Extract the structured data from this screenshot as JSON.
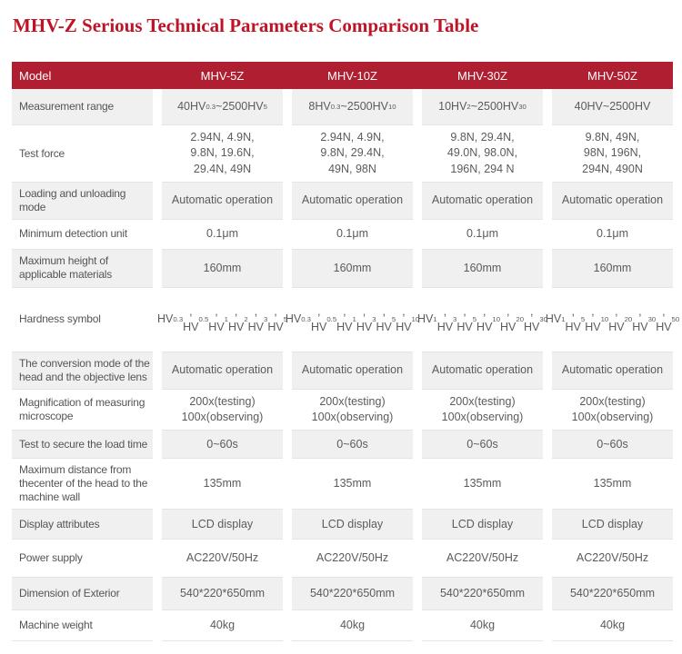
{
  "page": {
    "title": "MHV-Z Serious Technical Parameters Comparison Table"
  },
  "colors": {
    "title_red": "#bf1425",
    "header_bg": "#b01e31",
    "row_gray": "#f0f0f0"
  },
  "table": {
    "header": [
      "Model",
      "MHV-5Z",
      "MHV-10Z",
      "MHV-30Z",
      "MHV-50Z"
    ],
    "rows": [
      {
        "label": "Measurement range",
        "cells": [
          "40HV{0.3}~2500HV{5}",
          "8HV{0.3}~2500HV{10}",
          "10HV{2}~2500HV{30}",
          "40HV~2500HV"
        ]
      },
      {
        "label": "Test force",
        "cells": [
          [
            "2.94N、4.9N、",
            "9.8N、19.6N、",
            "29.4N、49N"
          ],
          [
            "2.94N、4.9N、",
            "9.8N、29.4N、",
            "49N、98N"
          ],
          [
            "9.8N、29.4N、",
            "49.0N、98.0N、",
            "196N、294 N"
          ],
          [
            "9.8N、49N、",
            "98N、196N、",
            "294N、490N"
          ]
        ]
      },
      {
        "label": "Loading and unloading mode",
        "cells": [
          "Automatic operation",
          "Automatic operation",
          "Automatic operation",
          "Automatic operation"
        ]
      },
      {
        "label": "Minimum detection unit",
        "cells": [
          "0.1μm",
          "0.1μm",
          "0.1μm",
          "0.1μm"
        ]
      },
      {
        "label": "Maximum height of applicable materials",
        "cells": [
          "160mm",
          "160mm",
          "160mm",
          "160mm"
        ]
      },
      {
        "label": "Hardness symbol",
        "cells": [
          [
            "HV{0.3}、HV{0.5}、",
            "HV{1}、HV{2}、",
            "HV{3}、HV{5}"
          ],
          [
            "HV{0.3}、HV{0.5}、",
            "HV{1}、HV{3}、",
            "HV{5}、HV{10}"
          ],
          [
            "HV{1}、HV{3}、",
            "HV{5}、HV{10}、",
            "HV{20}、HV{30}"
          ],
          [
            "HV{1}、HV{5}、",
            "HV{10}、HV{20}、",
            "HV{30}、HV{50}"
          ]
        ]
      },
      {
        "label": "The conversion mode of the head and the objective lens",
        "cells": [
          "Automatic operation",
          "Automatic operation",
          "Automatic operation",
          "Automatic operation"
        ]
      },
      {
        "label": "Magnification of measuring microscope",
        "cells": [
          [
            "200x(testing)",
            "100x(observing)"
          ],
          [
            "200x(testing)",
            "100x(observing)"
          ],
          [
            "200x(testing)",
            "100x(observing)"
          ],
          [
            "200x(testing)",
            "100x(observing)"
          ]
        ]
      },
      {
        "label": "Test to secure the load time",
        "cells": [
          "0~60s",
          "0~60s",
          "0~60s",
          "0~60s"
        ]
      },
      {
        "label": "Maximum distance from thecenter of the head to the machine wall",
        "cells": [
          "135mm",
          "135mm",
          "135mm",
          "135mm"
        ]
      },
      {
        "label": "Display attributes",
        "cells": [
          "LCD display",
          "LCD display",
          "LCD display",
          "LCD display"
        ]
      },
      {
        "label": "Power supply",
        "cells": [
          "AC220V/50Hz",
          "AC220V/50Hz",
          "AC220V/50Hz",
          "AC220V/50Hz"
        ]
      },
      {
        "label": "Dimension of Exterior",
        "cells": [
          "540*220*650mm",
          "540*220*650mm",
          "540*220*650mm",
          "540*220*650mm"
        ]
      },
      {
        "label": "Machine weight",
        "cells": [
          "40kg",
          "40kg",
          "40kg",
          "40kg"
        ]
      }
    ]
  }
}
